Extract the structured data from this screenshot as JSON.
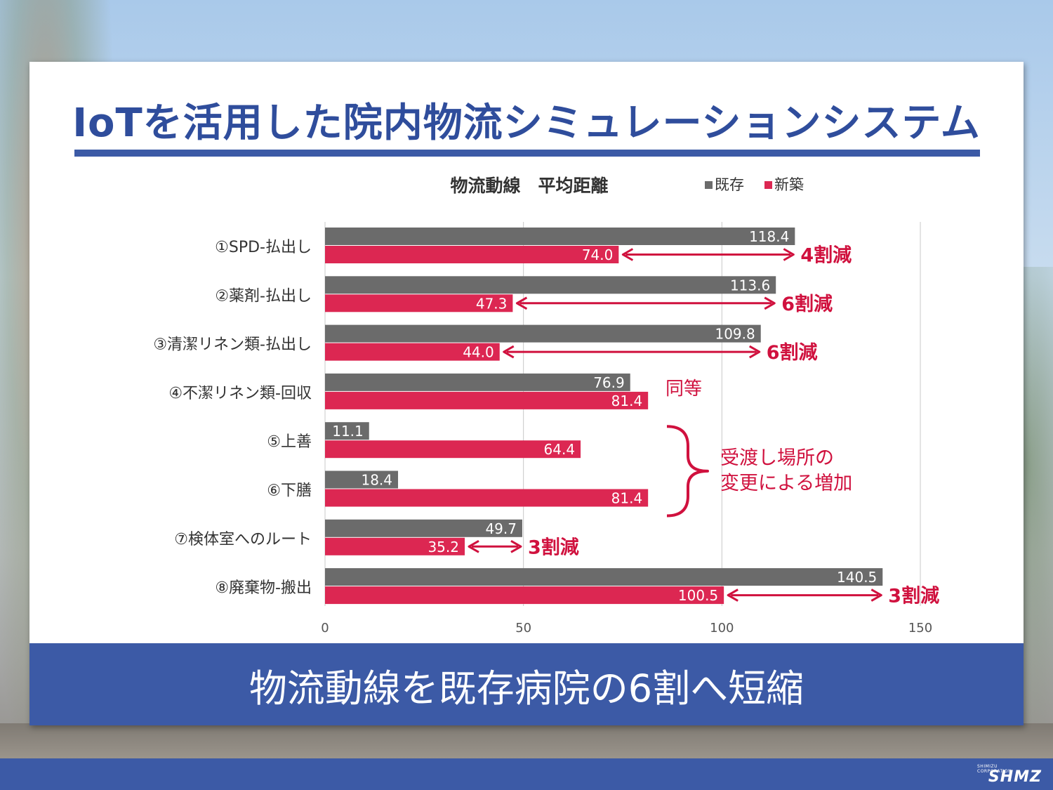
{
  "slide": {
    "title": "IoTを活用した院内物流シミュレーションシステム",
    "summary": "物流動線を既存病院の6割へ短縮",
    "logo_small": "SHIMIZU CORPORATION",
    "logo_big": "SHMZ"
  },
  "colors": {
    "existing": "#6b6b6b",
    "new": "#dc2752",
    "accent": "#d0113e",
    "brand_blue": "#3c5aa6"
  },
  "chart_data": {
    "type": "bar",
    "orientation": "horizontal",
    "title": "物流動線　平均距離",
    "categories": [
      "①SPD-払出し",
      "②薬剤-払出し",
      "③清潔リネン類-払出し",
      "④不潔リネン類-回収",
      "⑤上善",
      "⑥下膳",
      "⑦検体室へのルート",
      "⑧廃棄物-搬出"
    ],
    "series": [
      {
        "name": "既存",
        "values": [
          118.4,
          113.6,
          109.8,
          76.9,
          11.1,
          18.4,
          49.7,
          140.5
        ]
      },
      {
        "name": "新築",
        "values": [
          74.0,
          47.3,
          44.0,
          81.4,
          64.4,
          81.4,
          35.2,
          100.5
        ]
      }
    ],
    "data_labels": {
      "既存": [
        "118.4",
        "113.6",
        "109.8",
        "76.9",
        "11.1",
        "18.4",
        "49.7",
        "140.5"
      ],
      "新築": [
        "74.0",
        "47.3",
        "44.0",
        "81.4",
        "64.4",
        "81.4",
        "35.2",
        "100.5"
      ]
    },
    "xlim": [
      0,
      150
    ],
    "xticks": [
      0,
      50,
      100,
      150
    ],
    "grid": true,
    "legend_position": "top-right",
    "annotations": [
      {
        "category_index": 0,
        "kind": "arrow",
        "text": "4割減"
      },
      {
        "category_index": 1,
        "kind": "arrow",
        "text": "6割減"
      },
      {
        "category_index": 2,
        "kind": "arrow",
        "text": "6割減"
      },
      {
        "category_index": 3,
        "kind": "text",
        "text": "同等"
      },
      {
        "category_index": 6,
        "kind": "arrow",
        "text": "3割減"
      },
      {
        "category_index": 7,
        "kind": "arrow",
        "text": "3割減"
      }
    ],
    "brace_note": {
      "from_category": 4,
      "to_category": 5,
      "lines": [
        "受渡し場所の",
        "変更による増加"
      ]
    }
  }
}
